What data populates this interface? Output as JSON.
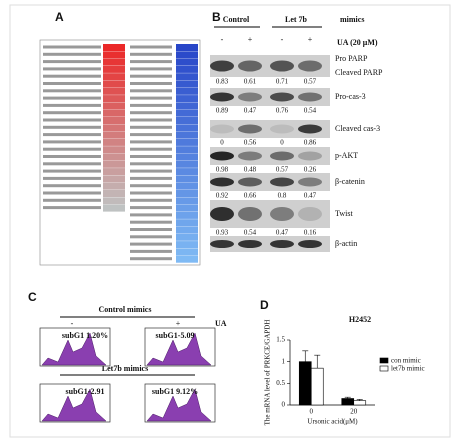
{
  "panels": {
    "a": "A",
    "b": "B",
    "c": "C",
    "d": "D"
  },
  "blot": {
    "control": "Control",
    "let7b": "Let 7b",
    "mimics": "mimics",
    "signs": [
      "-",
      "+",
      "-",
      "+"
    ],
    "treatment": "UA (20 μM)",
    "rows": [
      {
        "labels": [
          "Pro PARP",
          "Cleaved PARP"
        ],
        "values": [
          0.83,
          0.61,
          0.71,
          0.57
        ]
      },
      {
        "labels": [
          "Pro-cas-3"
        ],
        "values": [
          0.89,
          0.47,
          0.76,
          0.54
        ]
      },
      {
        "labels": [
          "Cleaved  cas-3"
        ],
        "values": [
          0,
          0.56,
          0,
          0.86
        ]
      },
      {
        "labels": [
          "p-AKT"
        ],
        "values": [
          0.98,
          0.48,
          0.57,
          0.26
        ]
      },
      {
        "labels": [
          "β-catenin"
        ],
        "values": [
          0.92,
          0.66,
          0.8,
          0.47
        ]
      },
      {
        "labels": [
          "Twist"
        ],
        "values": [
          0.93,
          0.54,
          0.47,
          0.16
        ]
      },
      {
        "labels": [
          "β-actin"
        ]
      }
    ]
  },
  "flow": {
    "control": "Control mimics",
    "let7b": "Let7b mimics",
    "minus": "-",
    "plus": "+",
    "ua": "UA",
    "gates": [
      "subG1  1.20%",
      "subG1-5.09",
      "subG1-2.91",
      "subG1  9.12%"
    ]
  },
  "chart_data": {
    "type": "bar",
    "title": "H2452",
    "categories": [
      "0",
      "20"
    ],
    "x_label": "Ursonic acid(μM)",
    "y_label": "The mRNA level of PRKCE/GAPDH",
    "series": [
      {
        "name": "con mimic",
        "color": "#000000",
        "values": [
          1.0,
          0.15
        ],
        "errors": [
          0.25,
          0.03
        ]
      },
      {
        "name": "let7b mimic",
        "color": "#ffffff",
        "values": [
          0.85,
          0.1
        ],
        "errors": [
          0.3,
          0.03
        ]
      }
    ],
    "ylim": [
      0,
      1.5
    ],
    "yticks": [
      0,
      0.5,
      1,
      1.5
    ]
  }
}
